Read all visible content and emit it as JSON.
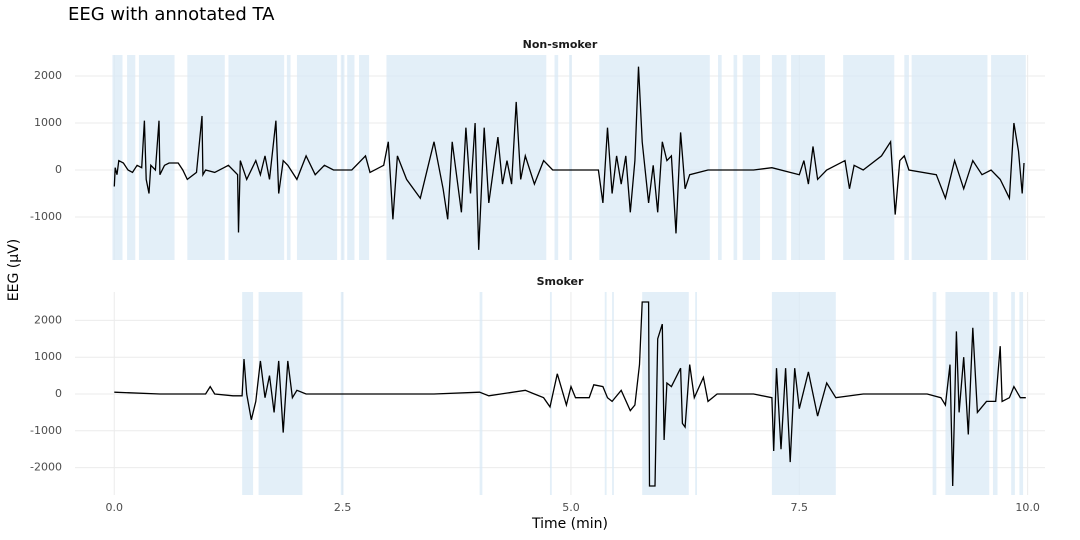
{
  "title": "EEG with annotated TA",
  "x_label": "Time (min)",
  "y_label": "EEG (µV)",
  "chart_data": [
    {
      "type": "line",
      "title": "Non-smoker",
      "color": "#000000",
      "shade_color": "#d9eaf5",
      "ta_intervals": [
        [
          -0.02,
          0.09
        ],
        [
          0.14,
          0.23
        ],
        [
          0.27,
          0.66
        ],
        [
          0.8,
          1.21
        ],
        [
          1.25,
          1.86
        ],
        [
          1.89,
          1.93
        ],
        [
          2.0,
          2.44
        ],
        [
          2.48,
          2.52
        ],
        [
          2.55,
          2.63
        ],
        [
          2.68,
          2.79
        ],
        [
          2.98,
          4.73
        ],
        [
          4.82,
          4.86
        ],
        [
          4.98,
          5.01
        ],
        [
          5.31,
          6.52
        ],
        [
          6.61,
          6.65
        ],
        [
          6.78,
          6.82
        ],
        [
          6.88,
          7.07
        ],
        [
          7.2,
          7.36
        ],
        [
          7.41,
          7.78
        ],
        [
          7.98,
          8.54
        ],
        [
          8.65,
          8.7
        ],
        [
          8.73,
          9.56
        ],
        [
          9.6,
          9.98
        ]
      ],
      "x": [
        0,
        0.01,
        0.03,
        0.05,
        0.1,
        0.15,
        0.2,
        0.25,
        0.3,
        0.33,
        0.35,
        0.38,
        0.4,
        0.45,
        0.49,
        0.5,
        0.55,
        0.6,
        0.7,
        0.75,
        0.8,
        0.9,
        0.96,
        0.97,
        1.0,
        1.1,
        1.2,
        1.25,
        1.35,
        1.36,
        1.38,
        1.45,
        1.55,
        1.6,
        1.65,
        1.7,
        1.77,
        1.8,
        1.85,
        1.9,
        2.0,
        2.1,
        2.2,
        2.3,
        2.4,
        2.6,
        2.75,
        2.8,
        2.95,
        3.0,
        3.05,
        3.1,
        3.2,
        3.35,
        3.5,
        3.6,
        3.65,
        3.7,
        3.8,
        3.85,
        3.9,
        3.95,
        3.99,
        4.05,
        4.1,
        4.2,
        4.25,
        4.3,
        4.35,
        4.4,
        4.45,
        4.5,
        4.6,
        4.7,
        4.8,
        5.0,
        5.3,
        5.35,
        5.4,
        5.45,
        5.5,
        5.55,
        5.6,
        5.65,
        5.7,
        5.74,
        5.78,
        5.85,
        5.9,
        5.95,
        6.0,
        6.05,
        6.1,
        6.15,
        6.2,
        6.25,
        6.3,
        6.5,
        6.8,
        7.0,
        7.2,
        7.5,
        7.55,
        7.6,
        7.65,
        7.7,
        7.8,
        8.0,
        8.05,
        8.1,
        8.2,
        8.4,
        8.5,
        8.55,
        8.6,
        8.65,
        8.7,
        9.0,
        9.1,
        9.2,
        9.3,
        9.4,
        9.5,
        9.6,
        9.7,
        9.8,
        9.85,
        9.9,
        9.94,
        9.96
      ],
      "values": [
        -350,
        50,
        -100,
        200,
        150,
        0,
        -50,
        100,
        50,
        1050,
        -200,
        -500,
        100,
        0,
        1050,
        -100,
        100,
        150,
        150,
        0,
        -200,
        -50,
        1150,
        -100,
        0,
        -50,
        50,
        100,
        -100,
        -1330,
        200,
        -200,
        200,
        -100,
        300,
        -200,
        1050,
        -500,
        200,
        100,
        -200,
        300,
        -100,
        100,
        0,
        0,
        300,
        -50,
        100,
        600,
        -1050,
        300,
        -200,
        -600,
        600,
        -400,
        -1050,
        600,
        -900,
        900,
        -500,
        1000,
        -1700,
        900,
        -700,
        700,
        -300,
        200,
        -300,
        1450,
        -200,
        300,
        -300,
        200,
        0,
        0,
        0,
        -700,
        900,
        -500,
        300,
        -300,
        300,
        -900,
        200,
        2200,
        600,
        -700,
        100,
        -900,
        600,
        200,
        300,
        -1350,
        800,
        -400,
        -100,
        0,
        0,
        0,
        50,
        -100,
        200,
        -300,
        500,
        -200,
        0,
        200,
        -400,
        100,
        0,
        300,
        600,
        -950,
        200,
        300,
        0,
        -100,
        -600,
        200,
        -400,
        200,
        -100,
        0,
        -200,
        -600,
        1000,
        400,
        -500,
        150
      ],
      "xlim": [
        -0.43,
        10.19
      ],
      "xticks": [
        {
          "value": 0,
          "label": "0.0"
        },
        2.5,
        {
          "value": 5,
          "label": "5.0"
        },
        7.5,
        {
          "value": 10,
          "label": "10.0"
        }
      ],
      "ylim": [
        -1915,
        2447
      ],
      "yticks": [
        -1000,
        0,
        1000,
        2000
      ]
    },
    {
      "type": "line",
      "title": "Smoker",
      "color": "#000000",
      "shade_color": "#d9eaf5",
      "ta_intervals": [
        [
          1.4,
          1.52
        ],
        [
          1.58,
          2.06
        ],
        [
          2.48,
          2.51
        ],
        [
          4.0,
          4.03
        ],
        [
          4.77,
          4.79
        ],
        [
          5.37,
          5.39
        ],
        [
          5.45,
          5.47
        ],
        [
          5.78,
          6.29
        ],
        [
          6.36,
          6.38
        ],
        [
          7.2,
          7.9
        ],
        [
          8.96,
          9.0
        ],
        [
          9.1,
          9.58
        ],
        [
          9.62,
          9.67
        ],
        [
          9.82,
          9.86
        ],
        [
          9.91,
          9.95
        ]
      ],
      "x": [
        0,
        0.5,
        1.0,
        1.05,
        1.1,
        1.3,
        1.4,
        1.42,
        1.45,
        1.5,
        1.55,
        1.6,
        1.65,
        1.7,
        1.75,
        1.8,
        1.85,
        1.9,
        1.95,
        2.0,
        2.1,
        2.5,
        3.0,
        3.5,
        4.0,
        4.1,
        4.5,
        4.6,
        4.7,
        4.77,
        4.85,
        4.95,
        5.0,
        5.05,
        5.2,
        5.25,
        5.35,
        5.4,
        5.45,
        5.55,
        5.65,
        5.7,
        5.75,
        5.78,
        5.85,
        5.86,
        5.92,
        5.95,
        6.0,
        6.02,
        6.05,
        6.1,
        6.2,
        6.22,
        6.25,
        6.3,
        6.35,
        6.45,
        6.5,
        6.6,
        7.0,
        7.2,
        7.22,
        7.25,
        7.3,
        7.35,
        7.4,
        7.45,
        7.5,
        7.6,
        7.7,
        7.8,
        7.9,
        8.2,
        8.6,
        8.9,
        9.05,
        9.1,
        9.15,
        9.18,
        9.22,
        9.25,
        9.3,
        9.35,
        9.4,
        9.45,
        9.55,
        9.65,
        9.7,
        9.72,
        9.8,
        9.85,
        9.92,
        9.98
      ],
      "values": [
        50,
        0,
        0,
        200,
        0,
        -50,
        -50,
        950,
        0,
        -700,
        -200,
        900,
        -100,
        500,
        -500,
        900,
        -1050,
        900,
        -100,
        100,
        0,
        0,
        0,
        0,
        50,
        -50,
        100,
        0,
        -100,
        -350,
        550,
        -300,
        200,
        -100,
        -100,
        250,
        200,
        -100,
        -200,
        100,
        -450,
        -300,
        800,
        2500,
        2500,
        -2500,
        -2500,
        1500,
        1900,
        -1250,
        300,
        200,
        700,
        -800,
        -900,
        800,
        -100,
        450,
        -200,
        0,
        0,
        -100,
        -1550,
        700,
        -1500,
        700,
        -1850,
        700,
        -400,
        600,
        -600,
        300,
        -100,
        0,
        0,
        0,
        -100,
        -300,
        800,
        -2500,
        1700,
        -500,
        1000,
        -1100,
        1800,
        -500,
        -200,
        -200,
        1300,
        -200,
        -100,
        200,
        -100,
        -100
      ],
      "xlim": [
        -0.43,
        10.19
      ],
      "xticks": [
        {
          "value": 0,
          "label": "0.0"
        },
        2.5,
        {
          "value": 5,
          "label": "5.0"
        },
        7.5,
        {
          "value": 10,
          "label": "10.0"
        }
      ],
      "ylim": [
        -2745,
        2772
      ],
      "yticks": [
        -2000,
        -1000,
        0,
        1000,
        2000
      ]
    }
  ]
}
